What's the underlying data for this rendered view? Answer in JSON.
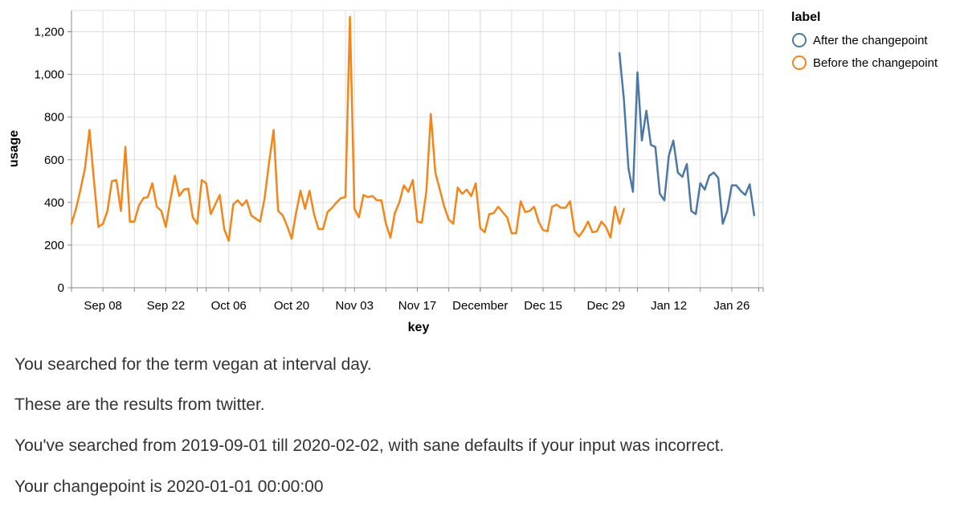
{
  "chart_data": {
    "type": "line",
    "xlabel": "key",
    "ylabel": "usage",
    "x_start": "2019-09-01",
    "x_end": "2020-02-02",
    "ylim": [
      0,
      1300
    ],
    "yticks": [
      0,
      200,
      400,
      600,
      800,
      1000,
      1200
    ],
    "ytick_labels": [
      "0",
      "200",
      "400",
      "600",
      "800",
      "1,000",
      "1,200"
    ],
    "xticks": [
      {
        "date": "2019-09-08",
        "label": "Sep 08"
      },
      {
        "date": "2019-09-22",
        "label": "Sep 22"
      },
      {
        "date": "2019-10-06",
        "label": "Oct 06"
      },
      {
        "date": "2019-10-20",
        "label": "Oct 20"
      },
      {
        "date": "2019-11-03",
        "label": "Nov 03"
      },
      {
        "date": "2019-11-17",
        "label": "Nov 17"
      },
      {
        "date": "2019-12-01",
        "label": "December"
      },
      {
        "date": "2019-12-15",
        "label": "Dec 15"
      },
      {
        "date": "2019-12-29",
        "label": "Dec 29"
      },
      {
        "date": "2020-01-12",
        "label": "Jan 12"
      },
      {
        "date": "2020-01-26",
        "label": "Jan 26"
      }
    ],
    "grid": true,
    "legend": {
      "title": "label",
      "position": "top-right"
    },
    "series": [
      {
        "name": "After the changepoint",
        "color": "#4c78a8",
        "start_date": "2020-01-01",
        "values": [
          1100,
          880,
          560,
          450,
          1010,
          690,
          830,
          670,
          660,
          440,
          410,
          620,
          690,
          540,
          520,
          580,
          360,
          345,
          490,
          460,
          525,
          540,
          515,
          300,
          360,
          480,
          480,
          455,
          435,
          485,
          340
        ]
      },
      {
        "name": "Before the changepoint",
        "color": "#f58518",
        "start_date": "2019-09-01",
        "values": [
          300,
          370,
          460,
          560,
          740,
          500,
          285,
          300,
          360,
          500,
          505,
          360,
          660,
          310,
          310,
          385,
          420,
          425,
          490,
          380,
          360,
          285,
          410,
          525,
          430,
          460,
          465,
          330,
          300,
          505,
          490,
          345,
          390,
          435,
          275,
          220,
          390,
          410,
          385,
          410,
          340,
          325,
          310,
          420,
          590,
          740,
          360,
          340,
          290,
          230,
          350,
          455,
          370,
          455,
          345,
          275,
          275,
          355,
          375,
          400,
          420,
          425,
          1270,
          370,
          330,
          435,
          425,
          430,
          410,
          410,
          300,
          235,
          350,
          400,
          480,
          450,
          505,
          310,
          305,
          450,
          815,
          540,
          460,
          380,
          320,
          300,
          470,
          440,
          460,
          430,
          490,
          280,
          260,
          345,
          350,
          380,
          355,
          330,
          255,
          255,
          405,
          355,
          360,
          380,
          310,
          270,
          265,
          380,
          390,
          375,
          375,
          405,
          265,
          240,
          270,
          310,
          260,
          265,
          310,
          285,
          235,
          380,
          300,
          370
        ]
      }
    ]
  },
  "info": {
    "line1": "You searched for the term vegan at interval day.",
    "line2": "These are the results from twitter.",
    "line3": "You've searched from 2019-09-01 till 2020-02-02, with sane defaults if your input was incorrect.",
    "line4": "Your changepoint is 2020-01-01 00:00:00"
  }
}
